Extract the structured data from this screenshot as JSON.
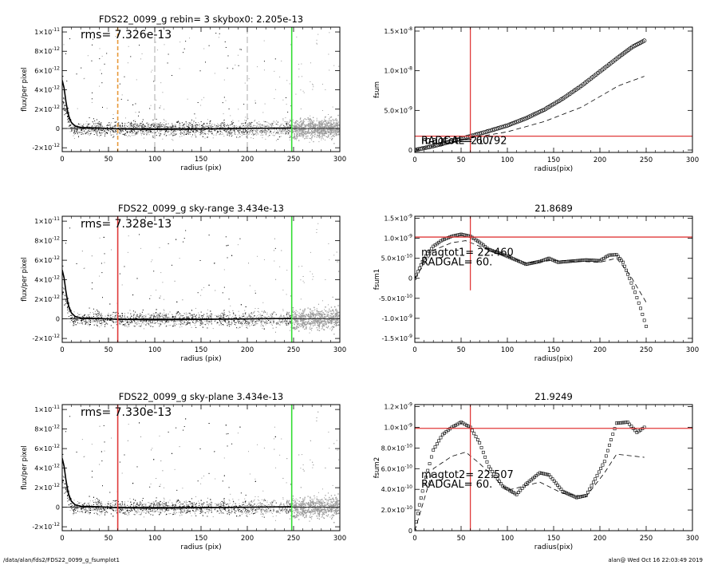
{
  "footer": {
    "path": "/data/alan/fds2/FDS22_0099_g_fsumplot1",
    "stamp": "alan@  Wed Oct 16 22:03:49 2019"
  },
  "colors": {
    "axis": "#000000",
    "points": "#9a9a9a",
    "points_dark": "#000000",
    "profile": "#000000",
    "red_line": "#e03a3a",
    "green_line": "#33dd33",
    "orange_line": "#e89a3a"
  },
  "chart_data": [
    {
      "id": "p1",
      "type": "scatter",
      "title": "FDS22_0099_g rebin= 3    skybox0:  2.205e-13",
      "xlabel": "radius (pix)",
      "ylabel": "flux/per pixel",
      "annotation": "rms= 7.326e-13",
      "xlim": [
        0,
        300
      ],
      "ylim": [
        -2.4e-12,
        1.05e-11
      ],
      "xticks": [
        0,
        50,
        100,
        150,
        200,
        250,
        300
      ],
      "yticks": [
        {
          "v": -2e-12,
          "m": "-2",
          "e": "-12"
        },
        {
          "v": 0,
          "m": "0",
          "e": ""
        },
        {
          "v": 2e-12,
          "m": "2",
          "e": "-12"
        },
        {
          "v": 4e-12,
          "m": "4",
          "e": "-12"
        },
        {
          "v": 6e-12,
          "m": "6",
          "e": "-12"
        },
        {
          "v": 8e-12,
          "m": "8",
          "e": "-12"
        },
        {
          "v": 1e-11,
          "m": "1",
          "e": "-11"
        }
      ],
      "vlines": [
        {
          "x": 60,
          "color": "orange",
          "dash": "dashed"
        },
        {
          "x": 248,
          "color": "green",
          "dash": "solid"
        },
        {
          "x": 100,
          "color": "gray",
          "dash": "dashed"
        },
        {
          "x": 200,
          "color": "gray",
          "dash": "dashed"
        }
      ],
      "profile": [
        {
          "x": 0,
          "y": 5e-12
        },
        {
          "x": 2,
          "y": 4.2e-12
        },
        {
          "x": 4,
          "y": 2.8e-12
        },
        {
          "x": 6,
          "y": 1.7e-12
        },
        {
          "x": 8,
          "y": 1e-12
        },
        {
          "x": 10,
          "y": 6e-13
        },
        {
          "x": 14,
          "y": 2.5e-13
        },
        {
          "x": 20,
          "y": 1e-13
        },
        {
          "x": 40,
          "y": 5e-14
        },
        {
          "x": 60,
          "y": -5e-14
        },
        {
          "x": 100,
          "y": -1e-13
        },
        {
          "x": 150,
          "y": -5e-14
        },
        {
          "x": 200,
          "y": 0.0
        },
        {
          "x": 248,
          "y": 5e-14
        }
      ],
      "hline": 0
    },
    {
      "id": "p2",
      "type": "scatter",
      "title": "",
      "xlabel": "radius(pix)",
      "ylabel": "fsum",
      "annotation": "magtot=   21.792",
      "annotation2": "RADGAL=     60.",
      "xlim": [
        0,
        300
      ],
      "ylim": [
        -3e-10,
        1.55e-08
      ],
      "xticks": [
        0,
        50,
        100,
        150,
        200,
        250,
        300
      ],
      "yticks": [
        {
          "v": 0,
          "m": "0",
          "e": ""
        },
        {
          "v": 5e-09,
          "m": "5.0",
          "e": "-9"
        },
        {
          "v": 1e-08,
          "m": "1.0",
          "e": "-8"
        },
        {
          "v": 1.5e-08,
          "m": "1.5",
          "e": "-8"
        }
      ],
      "vline": 60,
      "hline": 1.75e-09,
      "series_points": [
        {
          "x": 0,
          "y": 0
        },
        {
          "x": 20,
          "y": 5e-10
        },
        {
          "x": 40,
          "y": 1.1e-09
        },
        {
          "x": 60,
          "y": 1.75e-09
        },
        {
          "x": 80,
          "y": 2.4e-09
        },
        {
          "x": 100,
          "y": 3.1e-09
        },
        {
          "x": 120,
          "y": 4e-09
        },
        {
          "x": 140,
          "y": 5.1e-09
        },
        {
          "x": 160,
          "y": 6.5e-09
        },
        {
          "x": 180,
          "y": 8.1e-09
        },
        {
          "x": 200,
          "y": 9.9e-09
        },
        {
          "x": 220,
          "y": 1.17e-08
        },
        {
          "x": 235,
          "y": 1.3e-08
        },
        {
          "x": 248,
          "y": 1.38e-08
        }
      ],
      "series_dashed": [
        {
          "x": 0,
          "y": 0
        },
        {
          "x": 40,
          "y": 1e-09
        },
        {
          "x": 60,
          "y": 1.5e-09
        },
        {
          "x": 100,
          "y": 2.3e-09
        },
        {
          "x": 140,
          "y": 3.6e-09
        },
        {
          "x": 180,
          "y": 5.4e-09
        },
        {
          "x": 220,
          "y": 8.1e-09
        },
        {
          "x": 248,
          "y": 9.3e-09
        }
      ]
    },
    {
      "id": "p3",
      "type": "scatter",
      "title": "FDS22_0099_g sky-range  3.434e-13",
      "xlabel": "radius (pix)",
      "ylabel": "flux/per pixel",
      "annotation": "rms= 7.328e-13",
      "xlim": [
        0,
        300
      ],
      "ylim": [
        -2.4e-12,
        1.05e-11
      ],
      "xticks": [
        0,
        50,
        100,
        150,
        200,
        250,
        300
      ],
      "yticks": [
        {
          "v": -2e-12,
          "m": "-2",
          "e": "-12"
        },
        {
          "v": 0,
          "m": "0",
          "e": ""
        },
        {
          "v": 2e-12,
          "m": "2",
          "e": "-12"
        },
        {
          "v": 4e-12,
          "m": "4",
          "e": "-12"
        },
        {
          "v": 6e-12,
          "m": "6",
          "e": "-12"
        },
        {
          "v": 8e-12,
          "m": "8",
          "e": "-12"
        },
        {
          "v": 1e-11,
          "m": "1",
          "e": "-11"
        }
      ],
      "vlines": [
        {
          "x": 60,
          "color": "red",
          "dash": "solid"
        },
        {
          "x": 248,
          "color": "green",
          "dash": "solid"
        }
      ],
      "profile": [
        {
          "x": 0,
          "y": 5e-12
        },
        {
          "x": 2,
          "y": 4.2e-12
        },
        {
          "x": 4,
          "y": 2.8e-12
        },
        {
          "x": 6,
          "y": 1.7e-12
        },
        {
          "x": 8,
          "y": 1e-12
        },
        {
          "x": 10,
          "y": 6e-13
        },
        {
          "x": 14,
          "y": 2.5e-13
        },
        {
          "x": 20,
          "y": 1e-13
        },
        {
          "x": 40,
          "y": 5e-14
        },
        {
          "x": 60,
          "y": -5e-14
        },
        {
          "x": 100,
          "y": -1e-13
        },
        {
          "x": 150,
          "y": -5e-14
        },
        {
          "x": 200,
          "y": 0.0
        },
        {
          "x": 248,
          "y": 5e-14
        }
      ],
      "hline": 0
    },
    {
      "id": "p4",
      "type": "scatter",
      "title": "21.8689",
      "xlabel": "radius(pix)",
      "ylabel": "fsum1",
      "annotation": "magtot1=   22.460",
      "annotation2": "RADGAL=     60.",
      "xlim": [
        0,
        300
      ],
      "ylim": [
        -1.6e-09,
        1.55e-09
      ],
      "xticks": [
        0,
        50,
        100,
        150,
        200,
        250,
        300
      ],
      "yticks": [
        {
          "v": -1.5e-09,
          "m": "-1.5",
          "e": "-9"
        },
        {
          "v": -1e-09,
          "m": "-1.0",
          "e": "-9"
        },
        {
          "v": -5e-10,
          "m": "-5.0",
          "e": "-10"
        },
        {
          "v": 0,
          "m": "0",
          "e": ""
        },
        {
          "v": 5e-10,
          "m": "5.0",
          "e": "-10"
        },
        {
          "v": 1e-09,
          "m": "1.0",
          "e": "-9"
        },
        {
          "v": 1.5e-09,
          "m": "1.5",
          "e": "-9"
        }
      ],
      "vline": 60,
      "hline": 1.03e-09,
      "series_points": [
        {
          "x": 0,
          "y": 0
        },
        {
          "x": 5,
          "y": 2.5e-10
        },
        {
          "x": 10,
          "y": 5e-10
        },
        {
          "x": 20,
          "y": 8e-10
        },
        {
          "x": 30,
          "y": 9.6e-10
        },
        {
          "x": 40,
          "y": 1.05e-09
        },
        {
          "x": 50,
          "y": 1.1e-09
        },
        {
          "x": 60,
          "y": 1.05e-09
        },
        {
          "x": 70,
          "y": 9e-10
        },
        {
          "x": 80,
          "y": 7.2e-10
        },
        {
          "x": 95,
          "y": 6e-10
        },
        {
          "x": 110,
          "y": 4.5e-10
        },
        {
          "x": 120,
          "y": 3.5e-10
        },
        {
          "x": 135,
          "y": 4.2e-10
        },
        {
          "x": 145,
          "y": 5e-10
        },
        {
          "x": 155,
          "y": 4e-10
        },
        {
          "x": 170,
          "y": 4.3e-10
        },
        {
          "x": 185,
          "y": 4.6e-10
        },
        {
          "x": 200,
          "y": 4.4e-10
        },
        {
          "x": 210,
          "y": 5.8e-10
        },
        {
          "x": 218,
          "y": 5.9e-10
        },
        {
          "x": 225,
          "y": 4e-10
        },
        {
          "x": 232,
          "y": 0.0
        },
        {
          "x": 238,
          "y": -3.5e-10
        },
        {
          "x": 244,
          "y": -7.5e-10
        },
        {
          "x": 250,
          "y": -1.2e-09
        }
      ],
      "series_dashed": [
        {
          "x": 0,
          "y": 0
        },
        {
          "x": 20,
          "y": 7e-10
        },
        {
          "x": 40,
          "y": 8.9e-10
        },
        {
          "x": 55,
          "y": 9.4e-10
        },
        {
          "x": 70,
          "y": 8e-10
        },
        {
          "x": 90,
          "y": 6.3e-10
        },
        {
          "x": 120,
          "y": 3.8e-10
        },
        {
          "x": 150,
          "y": 4.5e-10
        },
        {
          "x": 200,
          "y": 4e-10
        },
        {
          "x": 218,
          "y": 5e-10
        },
        {
          "x": 232,
          "y": 1e-10
        },
        {
          "x": 250,
          "y": -6e-10
        }
      ]
    },
    {
      "id": "p5",
      "type": "scatter",
      "title": "FDS22_0099_g sky-plane  3.434e-13",
      "xlabel": "radius (pix)",
      "ylabel": "flux/per pixel",
      "annotation": "rms= 7.330e-13",
      "xlim": [
        0,
        300
      ],
      "ylim": [
        -2.4e-12,
        1.05e-11
      ],
      "xticks": [
        0,
        50,
        100,
        150,
        200,
        250,
        300
      ],
      "yticks": [
        {
          "v": -2e-12,
          "m": "-2",
          "e": "-12"
        },
        {
          "v": 0,
          "m": "0",
          "e": ""
        },
        {
          "v": 2e-12,
          "m": "2",
          "e": "-12"
        },
        {
          "v": 4e-12,
          "m": "4",
          "e": "-12"
        },
        {
          "v": 6e-12,
          "m": "6",
          "e": "-12"
        },
        {
          "v": 8e-12,
          "m": "8",
          "e": "-12"
        },
        {
          "v": 1e-11,
          "m": "1",
          "e": "-11"
        }
      ],
      "vlines": [
        {
          "x": 60,
          "color": "red",
          "dash": "solid"
        },
        {
          "x": 248,
          "color": "green",
          "dash": "solid"
        }
      ],
      "profile": [
        {
          "x": 0,
          "y": 5e-12
        },
        {
          "x": 2,
          "y": 4.2e-12
        },
        {
          "x": 4,
          "y": 2.8e-12
        },
        {
          "x": 6,
          "y": 1.7e-12
        },
        {
          "x": 8,
          "y": 1e-12
        },
        {
          "x": 10,
          "y": 6e-13
        },
        {
          "x": 14,
          "y": 2.5e-13
        },
        {
          "x": 20,
          "y": 1e-13
        },
        {
          "x": 40,
          "y": 5e-14
        },
        {
          "x": 60,
          "y": -5e-14
        },
        {
          "x": 100,
          "y": -1e-13
        },
        {
          "x": 150,
          "y": -5e-14
        },
        {
          "x": 200,
          "y": 0.0
        },
        {
          "x": 248,
          "y": 5e-14
        }
      ],
      "hline": 0
    },
    {
      "id": "p6",
      "type": "scatter",
      "title": "21.9249",
      "xlabel": "radius(pix)",
      "ylabel": "fsum2",
      "annotation": "magtot2=   22.507",
      "annotation2": "RADGAL=     60.",
      "xlim": [
        0,
        300
      ],
      "ylim": [
        0,
        1.22e-09
      ],
      "xticks": [
        0,
        50,
        100,
        150,
        200,
        250,
        300
      ],
      "yticks": [
        {
          "v": 0,
          "m": "0",
          "e": ""
        },
        {
          "v": 2e-10,
          "m": "2.0",
          "e": "-10"
        },
        {
          "v": 4e-10,
          "m": "4.0",
          "e": "-10"
        },
        {
          "v": 6e-10,
          "m": "6.0",
          "e": "-10"
        },
        {
          "v": 8e-10,
          "m": "8.0",
          "e": "-10"
        },
        {
          "v": 1e-09,
          "m": "1.0",
          "e": "-9"
        },
        {
          "v": 1.2e-09,
          "m": "1.2",
          "e": "-9"
        }
      ],
      "vline": 60,
      "hline": 9.9e-10,
      "series_points": [
        {
          "x": 0,
          "y": 0
        },
        {
          "x": 5,
          "y": 2.5e-10
        },
        {
          "x": 10,
          "y": 4.5e-10
        },
        {
          "x": 20,
          "y": 7.8e-10
        },
        {
          "x": 30,
          "y": 9.3e-10
        },
        {
          "x": 40,
          "y": 1e-09
        },
        {
          "x": 50,
          "y": 1.05e-09
        },
        {
          "x": 60,
          "y": 1e-09
        },
        {
          "x": 70,
          "y": 8.5e-10
        },
        {
          "x": 80,
          "y": 6.2e-10
        },
        {
          "x": 95,
          "y": 4.3e-10
        },
        {
          "x": 110,
          "y": 3.5e-10
        },
        {
          "x": 120,
          "y": 4.5e-10
        },
        {
          "x": 135,
          "y": 5.6e-10
        },
        {
          "x": 145,
          "y": 5.4e-10
        },
        {
          "x": 160,
          "y": 3.8e-10
        },
        {
          "x": 175,
          "y": 3.2e-10
        },
        {
          "x": 185,
          "y": 3.4e-10
        },
        {
          "x": 195,
          "y": 5e-10
        },
        {
          "x": 205,
          "y": 6.7e-10
        },
        {
          "x": 212,
          "y": 8.8e-10
        },
        {
          "x": 218,
          "y": 1.04e-09
        },
        {
          "x": 230,
          "y": 1.05e-09
        },
        {
          "x": 240,
          "y": 9.5e-10
        },
        {
          "x": 248,
          "y": 1e-09
        }
      ],
      "series_dashed": [
        {
          "x": 0,
          "y": 0
        },
        {
          "x": 20,
          "y": 6e-10
        },
        {
          "x": 40,
          "y": 7.2e-10
        },
        {
          "x": 55,
          "y": 7.6e-10
        },
        {
          "x": 70,
          "y": 6.5e-10
        },
        {
          "x": 100,
          "y": 3.9e-10
        },
        {
          "x": 135,
          "y": 4.7e-10
        },
        {
          "x": 160,
          "y": 3.6e-10
        },
        {
          "x": 185,
          "y": 3.3e-10
        },
        {
          "x": 205,
          "y": 5.6e-10
        },
        {
          "x": 218,
          "y": 7.4e-10
        },
        {
          "x": 248,
          "y": 7.1e-10
        }
      ]
    }
  ]
}
